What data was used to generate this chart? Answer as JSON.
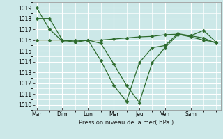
{
  "xlabel": "Pression niveau de la mer( hPa )",
  "bg_color": "#cce8e8",
  "grid_color": "#ffffff",
  "line_color": "#2d6b2d",
  "ylim": [
    1009.5,
    1019.5
  ],
  "yticks": [
    1010,
    1011,
    1012,
    1013,
    1014,
    1015,
    1016,
    1017,
    1018,
    1019
  ],
  "days": [
    "Mar",
    "Dim",
    "Lun",
    "Mer",
    "Jeu",
    "Ven",
    "Sam"
  ],
  "day_positions": [
    0,
    6,
    12,
    18,
    24,
    30,
    36
  ],
  "line1_x": [
    0,
    3,
    6,
    9,
    12,
    15,
    18,
    21,
    24,
    27,
    30,
    33,
    36,
    39,
    42
  ],
  "line1_y": [
    1019.0,
    1017.0,
    1015.9,
    1016.0,
    1016.0,
    1015.7,
    1013.8,
    1011.8,
    1010.2,
    1013.9,
    1015.3,
    1016.5,
    1016.4,
    1016.2,
    1015.7
  ],
  "line2_x": [
    0,
    3,
    6,
    9,
    12,
    15,
    18,
    21,
    24,
    27,
    30,
    33,
    36,
    39,
    42
  ],
  "line2_y": [
    1018.0,
    1018.0,
    1016.0,
    1015.9,
    1016.0,
    1016.0,
    1016.1,
    1016.2,
    1016.3,
    1016.35,
    1016.5,
    1016.55,
    1016.3,
    1016.0,
    1015.8
  ],
  "line3_x": [
    0,
    3,
    6,
    9,
    12,
    15,
    18,
    21,
    24,
    27,
    30,
    33,
    36,
    39,
    42
  ],
  "line3_y": [
    1016.0,
    1016.0,
    1016.0,
    1015.8,
    1016.0,
    1014.1,
    1011.8,
    1010.3,
    1013.9,
    1015.3,
    1015.5,
    1016.6,
    1016.4,
    1016.9,
    1015.8
  ],
  "xlabel_fontsize": 6.0,
  "tick_fontsize": 5.5,
  "linewidth": 0.9,
  "markersize": 2.5
}
